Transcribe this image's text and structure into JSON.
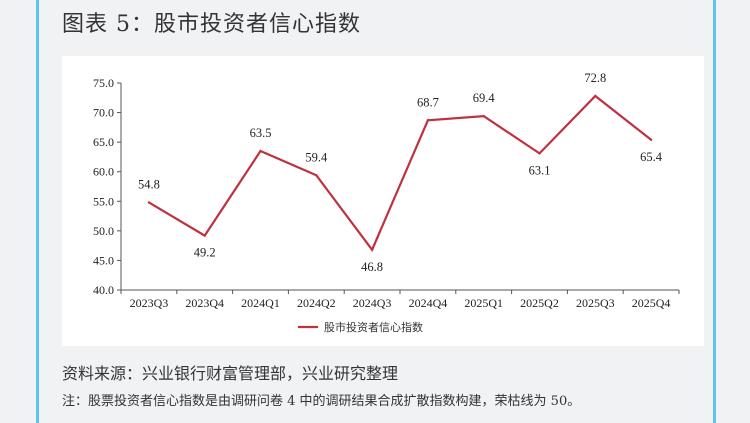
{
  "title": "图表 5：股市投资者信心指数",
  "source": "资料来源：兴业银行财富管理部，兴业研究整理",
  "note": "注：股票投资者信心指数是由调研问卷 4 中的调研结果合成扩散指数构建，荣枯线为 50。",
  "colors": {
    "line": "#c0303f",
    "border": "#5ec4ee",
    "background": "#f1f2f4"
  },
  "chart_data": {
    "type": "line",
    "categories": [
      "2023Q3",
      "2023Q4",
      "2024Q1",
      "2024Q2",
      "2024Q3",
      "2024Q4",
      "2025Q1",
      "2025Q2",
      "2025Q3",
      "2025Q4"
    ],
    "series": [
      {
        "name": "股市投资者信心指数",
        "values": [
          54.8,
          49.2,
          63.5,
          59.4,
          46.8,
          68.7,
          69.4,
          63.1,
          72.8,
          65.4
        ]
      }
    ],
    "data_labels": [
      "54.8",
      "49.2",
      "63.5",
      "59.4",
      "46.8",
      "68.7",
      "69.4",
      "63.1",
      "72.8",
      "65.4"
    ],
    "ylim": [
      40,
      75
    ],
    "yticks": [
      "40.0",
      "45.0",
      "50.0",
      "55.0",
      "60.0",
      "65.0",
      "70.0",
      "75.0"
    ],
    "grid": false,
    "legend_position": "bottom"
  }
}
